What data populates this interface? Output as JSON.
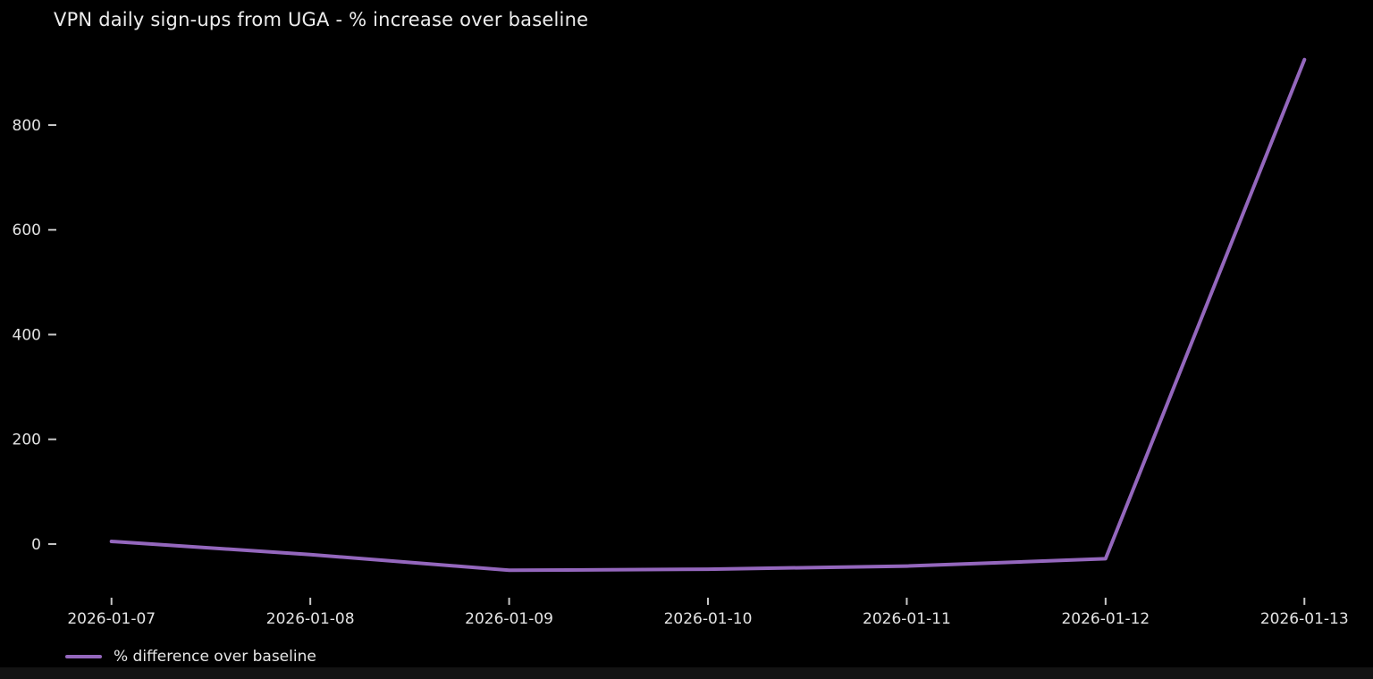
{
  "figure": {
    "background_color": "#000000",
    "title_color": "#ededed",
    "tick_text_color": "#e3e3e3",
    "tick_mark_color": "#c8c8c8"
  },
  "legend": {
    "label": "% difference over baseline",
    "swatch_color": "#9467bd"
  },
  "chart_data": {
    "type": "line",
    "title": "VPN daily sign-ups from UGA - % increase over baseline",
    "x": [
      "2026-01-07",
      "2026-01-08",
      "2026-01-09",
      "2026-01-10",
      "2026-01-11",
      "2026-01-12",
      "2026-01-13"
    ],
    "series": [
      {
        "name": "% difference over baseline",
        "color": "#9467bd",
        "values": [
          5,
          -20,
          -50,
          -48,
          -42,
          -28,
          925
        ]
      }
    ],
    "xlabel": "",
    "ylabel": "",
    "ylim": [
      -99,
      974
    ],
    "yticks": [
      0,
      200,
      400,
      600,
      800
    ],
    "grid": false,
    "legend_position": "lower-left-outside",
    "line_width": 4
  }
}
